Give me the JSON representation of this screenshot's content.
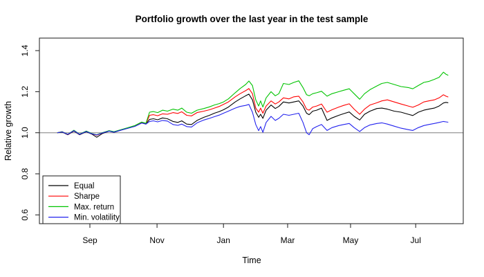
{
  "title": "Portfolio growth over the last year in the test sample",
  "chart_data": {
    "type": "line",
    "title": "Portfolio growth over the last year in the test sample",
    "xlabel": "Time",
    "ylabel": "Relative growth",
    "x_unit": "months since Aug 1 (0 = Aug, 1 = Sep, ... 12 = following Aug)",
    "xlim": [
      -0.55,
      12.46
    ],
    "ylim": [
      0.557,
      1.461
    ],
    "grid": false,
    "reference_line_y": 1.0,
    "legend_position": "bottom-left",
    "x_ticks": [
      {
        "label": "Sep",
        "t": 1.0
      },
      {
        "label": "Nov",
        "t": 3.06
      },
      {
        "label": "Jan",
        "t": 5.1
      },
      {
        "label": "Mar",
        "t": 7.07
      },
      {
        "label": "May",
        "t": 9.0
      },
      {
        "label": "Jul",
        "t": 11.0
      }
    ],
    "y_ticks": [
      "0.6",
      "0.8",
      "1.0",
      "1.2",
      "1.4"
    ],
    "y_tick_values": [
      0.6,
      0.8,
      1.0,
      1.2,
      1.4
    ],
    "x": [
      0,
      0.15,
      0.32,
      0.51,
      0.68,
      0.89,
      1.06,
      1.21,
      1.38,
      1.59,
      1.74,
      1.96,
      2.17,
      2.38,
      2.59,
      2.72,
      2.83,
      2.95,
      3.08,
      3.23,
      3.38,
      3.55,
      3.7,
      3.82,
      3.97,
      4.12,
      4.29,
      4.5,
      4.67,
      4.82,
      4.97,
      5.1,
      5.25,
      5.46,
      5.61,
      5.78,
      5.88,
      5.99,
      6.09,
      6.18,
      6.24,
      6.31,
      6.41,
      6.56,
      6.69,
      6.8,
      6.94,
      7.11,
      7.26,
      7.41,
      7.54,
      7.65,
      7.73,
      7.84,
      7.96,
      8.11,
      8.28,
      8.43,
      8.64,
      8.79,
      8.96,
      9.11,
      9.28,
      9.43,
      9.6,
      9.81,
      9.96,
      10.13,
      10.34,
      10.55,
      10.77,
      10.91,
      11.08,
      11.25,
      11.4,
      11.57,
      11.72,
      11.85,
      11.93,
      12
    ],
    "series": [
      {
        "name": "Equal",
        "color": "#000000",
        "values": [
          1,
          1.003,
          0.99,
          1.008,
          0.99,
          1.005,
          0.993,
          0.978,
          0.996,
          1.008,
          1.002,
          1.013,
          1.022,
          1.032,
          1.048,
          1.042,
          1.065,
          1.068,
          1.063,
          1.072,
          1.068,
          1.055,
          1.05,
          1.058,
          1.042,
          1.04,
          1.06,
          1.075,
          1.085,
          1.095,
          1.103,
          1.112,
          1.125,
          1.15,
          1.165,
          1.18,
          1.188,
          1.16,
          1.1,
          1.075,
          1.09,
          1.07,
          1.11,
          1.135,
          1.118,
          1.128,
          1.15,
          1.145,
          1.15,
          1.155,
          1.13,
          1.095,
          1.088,
          1.105,
          1.11,
          1.12,
          1.06,
          1.072,
          1.085,
          1.093,
          1.101,
          1.08,
          1.062,
          1.09,
          1.105,
          1.118,
          1.12,
          1.115,
          1.105,
          1.1,
          1.09,
          1.084,
          1.1,
          1.11,
          1.115,
          1.12,
          1.13,
          1.145,
          1.148,
          1.146
        ]
      },
      {
        "name": "Sharpe",
        "color": "#ff0000",
        "values": [
          1,
          1.005,
          0.991,
          1.01,
          0.992,
          1.007,
          0.995,
          0.988,
          0.999,
          1.009,
          1.004,
          1.014,
          1.024,
          1.033,
          1.05,
          1.044,
          1.085,
          1.088,
          1.083,
          1.092,
          1.09,
          1.098,
          1.094,
          1.102,
          1.085,
          1.082,
          1.098,
          1.105,
          1.112,
          1.12,
          1.128,
          1.138,
          1.15,
          1.175,
          1.19,
          1.205,
          1.215,
          1.19,
          1.12,
          1.1,
          1.12,
          1.095,
          1.13,
          1.155,
          1.14,
          1.15,
          1.17,
          1.165,
          1.175,
          1.178,
          1.15,
          1.115,
          1.11,
          1.125,
          1.13,
          1.14,
          1.1,
          1.112,
          1.125,
          1.133,
          1.141,
          1.115,
          1.09,
          1.115,
          1.135,
          1.146,
          1.155,
          1.16,
          1.15,
          1.14,
          1.13,
          1.124,
          1.135,
          1.15,
          1.155,
          1.16,
          1.17,
          1.185,
          1.178,
          1.174
        ]
      },
      {
        "name": "Max. return",
        "color": "#00c400",
        "values": [
          1,
          1.005,
          0.992,
          1.012,
          0.993,
          1.008,
          0.996,
          0.99,
          1,
          1.01,
          1.005,
          1.015,
          1.025,
          1.035,
          1.052,
          1.046,
          1.1,
          1.103,
          1.098,
          1.11,
          1.105,
          1.115,
          1.11,
          1.12,
          1.1,
          1.095,
          1.11,
          1.118,
          1.126,
          1.135,
          1.142,
          1.15,
          1.165,
          1.195,
          1.215,
          1.235,
          1.252,
          1.23,
          1.16,
          1.13,
          1.155,
          1.125,
          1.17,
          1.2,
          1.18,
          1.19,
          1.24,
          1.235,
          1.245,
          1.253,
          1.22,
          1.185,
          1.18,
          1.19,
          1.195,
          1.202,
          1.178,
          1.19,
          1.2,
          1.207,
          1.214,
          1.19,
          1.163,
          1.19,
          1.21,
          1.228,
          1.24,
          1.245,
          1.235,
          1.225,
          1.22,
          1.214,
          1.23,
          1.245,
          1.25,
          1.26,
          1.27,
          1.295,
          1.285,
          1.28
        ]
      },
      {
        "name": "Min. volatility",
        "color": "#2222ee",
        "values": [
          1,
          1.004,
          0.992,
          1.01,
          0.992,
          1.006,
          0.995,
          0.989,
          0.999,
          1.008,
          1.003,
          1.013,
          1.022,
          1.031,
          1.047,
          1.042,
          1.055,
          1.058,
          1.053,
          1.06,
          1.057,
          1.04,
          1.036,
          1.042,
          1.03,
          1.028,
          1.048,
          1.062,
          1.07,
          1.078,
          1.086,
          1.095,
          1.105,
          1.12,
          1.128,
          1.133,
          1.138,
          1.1,
          1.04,
          1.01,
          1.03,
          1.002,
          1.05,
          1.08,
          1.06,
          1.07,
          1.09,
          1.085,
          1.09,
          1.095,
          1.05,
          1,
          0.99,
          1.02,
          1.03,
          1.04,
          1.011,
          1.025,
          1.035,
          1.04,
          1.045,
          1.025,
          1.006,
          1.025,
          1.038,
          1.045,
          1.048,
          1.042,
          1.032,
          1.022,
          1.015,
          1.011,
          1.025,
          1.035,
          1.04,
          1.045,
          1.05,
          1.055,
          1.053,
          1.051
        ]
      }
    ],
    "legend": [
      "Equal",
      "Sharpe",
      "Max. return",
      "Min. volatility"
    ]
  },
  "colors": {
    "background": "#ffffff",
    "box": "#1a1a1a",
    "reference_line": "#7f7f7f",
    "tick": "#1a1a1a",
    "text": "#000000",
    "equal": "#000000",
    "sharpe": "#ff0000",
    "max_return": "#00c400",
    "min_volatility": "#2222ee"
  }
}
